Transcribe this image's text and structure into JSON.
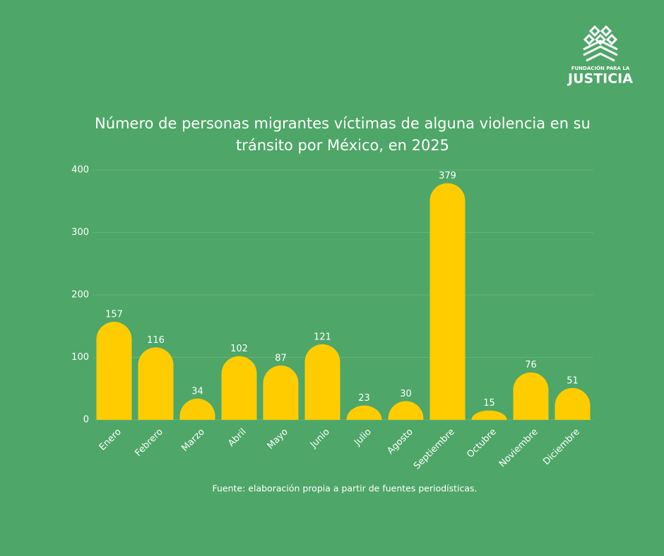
{
  "chart_data": {
    "type": "bar",
    "title": "Número de personas migrantes víctimas de alguna violencia en su tránsito por México, en 2025",
    "categories": [
      "Enero",
      "Febrero",
      "Marzo",
      "Abril",
      "Mayo",
      "Junio",
      "Julio",
      "Agosto",
      "Septiembre",
      "Octubre",
      "Noviembre",
      "Diciembre"
    ],
    "values": [
      157,
      116,
      34,
      102,
      87,
      121,
      23,
      30,
      379,
      15,
      76,
      51
    ],
    "color": "#ffcc00",
    "ylim": [
      0,
      400
    ],
    "yticks": [
      0,
      100,
      200,
      300,
      400
    ],
    "grid": true,
    "source": "Fuente: elaboración propia a partir de fuentes periodísticas."
  },
  "logo": {
    "line1": "FUNDACIÓN PARA LA",
    "line2": "JUSTICIA"
  }
}
